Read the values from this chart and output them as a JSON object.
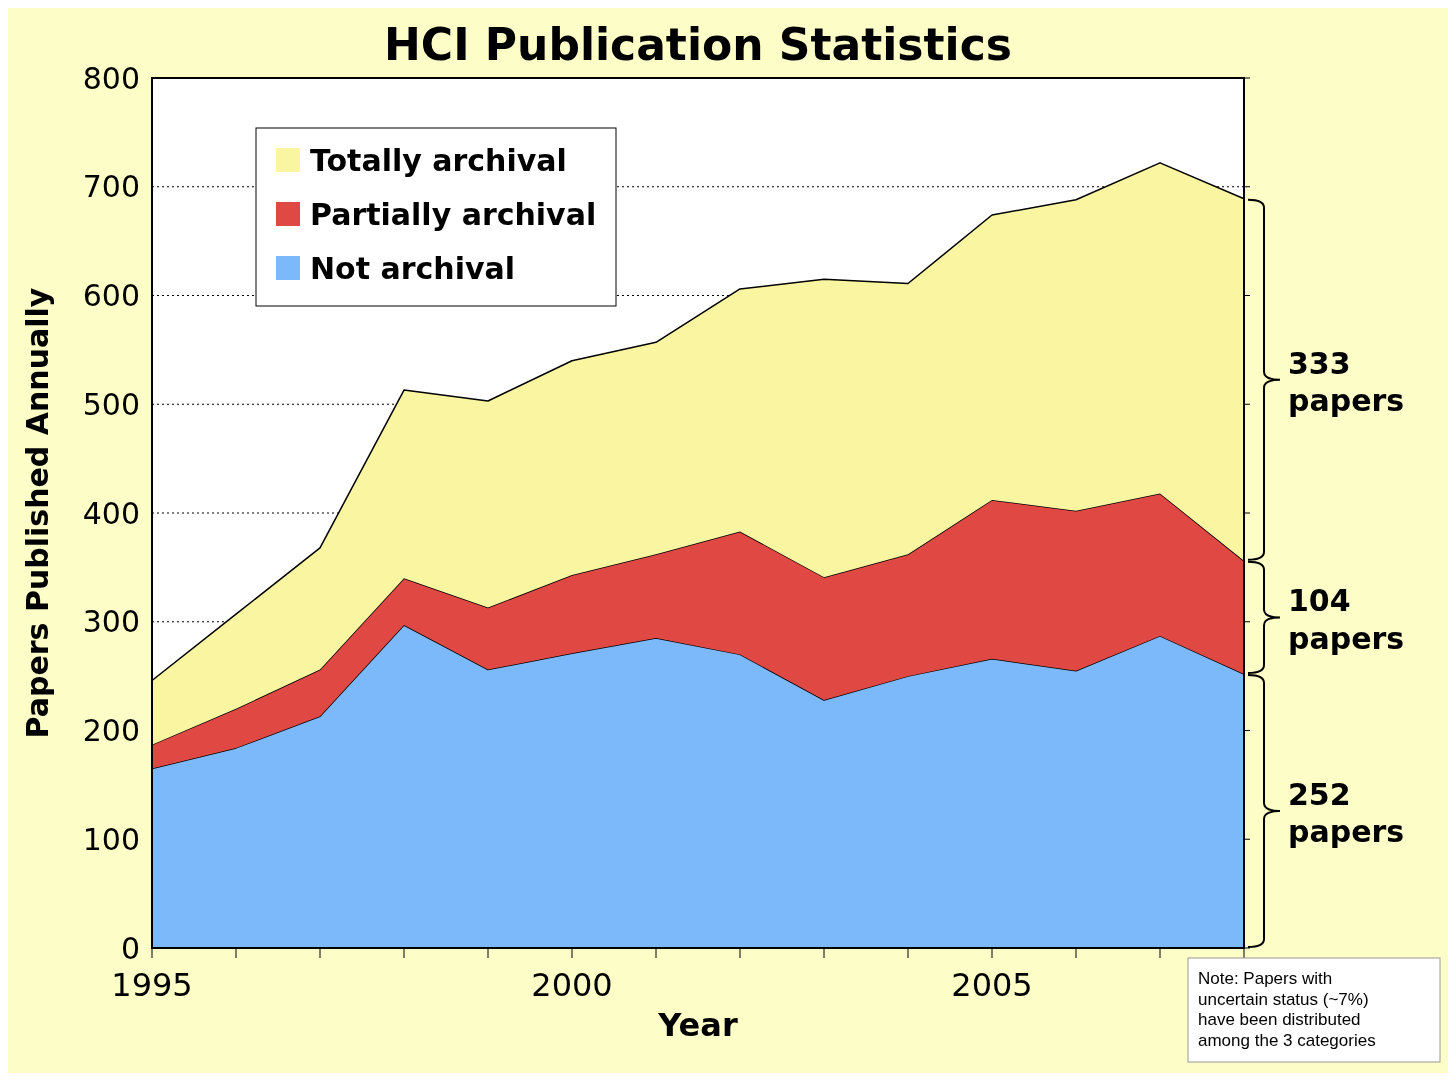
{
  "chart_data": {
    "type": "area",
    "stacked": true,
    "title": "HCI Publication Statistics",
    "xlabel": "Year",
    "ylabel": "Papers Published Annually",
    "x": [
      1995,
      1996,
      1997,
      1998,
      1999,
      2000,
      2001,
      2002,
      2003,
      2004,
      2005,
      2006,
      2007,
      2008
    ],
    "series": [
      {
        "name": "Not archival",
        "color": "#7cb9fa",
        "values": [
          165,
          184,
          213,
          297,
          256,
          271,
          285,
          270,
          228,
          250,
          266,
          255,
          287,
          252
        ]
      },
      {
        "name": "Partially archival",
        "color": "#e04844",
        "values": [
          22,
          36,
          43,
          43,
          57,
          72,
          77,
          113,
          113,
          112,
          146,
          147,
          131,
          104
        ]
      },
      {
        "name": "Totally archival",
        "color": "#faf5a0",
        "values": [
          59,
          87,
          112,
          173,
          190,
          197,
          195,
          223,
          274,
          249,
          262,
          286,
          304,
          333
        ]
      }
    ],
    "xlim": [
      1995,
      2008
    ],
    "xticks": [
      1995,
      {
        "value": 1996,
        "label": null
      },
      {
        "value": 1997,
        "label": null
      },
      {
        "value": 1998,
        "label": null
      },
      {
        "value": 1999,
        "label": null
      },
      2000,
      {
        "value": 2001,
        "label": null
      },
      {
        "value": 2002,
        "label": null
      },
      {
        "value": 2003,
        "label": null
      },
      {
        "value": 2004,
        "label": null
      },
      2005,
      {
        "value": 2006,
        "label": null
      },
      {
        "value": 2007,
        "label": null
      },
      {
        "value": 2008,
        "label": null
      }
    ],
    "ylim": [
      0,
      800
    ],
    "yticks": [
      0,
      100,
      200,
      300,
      400,
      500,
      600,
      700,
      800
    ],
    "grid": "y",
    "legend": "top left",
    "annotations": [
      "252 papers",
      "104 papers",
      "333 papers",
      "Note: Papers with uncertain status (~7%) have been distributed among the 3 categories"
    ]
  }
}
